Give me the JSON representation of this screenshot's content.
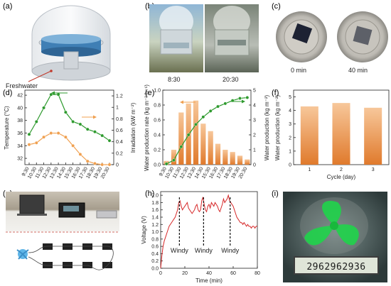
{
  "panel_labels": [
    "(a)",
    "(b)",
    "(c)",
    "(d)",
    "(e)",
    "(f)",
    "(g)",
    "(h)",
    "(i)"
  ],
  "panel_a": {
    "label": "Freshwater"
  },
  "panel_b": {
    "times": [
      "8:30",
      "20:30"
    ]
  },
  "panel_c": {
    "times": [
      "0 min",
      "40 min"
    ]
  },
  "panel_i": {
    "counter": "2962962936"
  },
  "colors": {
    "green": "#2e9a2e",
    "orange": "#f0a050",
    "bar_top": "#f7c79a",
    "bar_bottom": "#e07a2c",
    "black": "#000000"
  },
  "chart_data": [
    {
      "id": "d",
      "type": "line",
      "categories": [
        "9:30",
        "10:30",
        "11:30",
        "12:30",
        "13:30",
        "14:30",
        "15:30",
        "16:30",
        "17:30",
        "18:30",
        "19:30",
        "20:30"
      ],
      "ylabel": "Temperature (°C)",
      "y2label": "Irradiation (kW m⁻²)",
      "ylim": [
        31,
        42.8
      ],
      "yticks": [
        32,
        34,
        36,
        38,
        40,
        42
      ],
      "y2lim": [
        0,
        1.3
      ],
      "y2ticks": [
        0,
        0.2,
        0.4,
        0.6,
        0.8,
        1.0,
        1.2
      ],
      "series": [
        {
          "axis": "left",
          "color": "green",
          "values": [
            35.8,
            37.8,
            40.0,
            42.1,
            42.1,
            39.3,
            37.8,
            37.4,
            36.6,
            36.2,
            35.6,
            34.8
          ]
        },
        {
          "axis": "right",
          "color": "orange",
          "values": [
            0.35,
            0.38,
            0.48,
            0.55,
            0.55,
            0.48,
            0.33,
            0.18,
            0.06,
            0.02,
            0.0,
            0.0
          ]
        }
      ]
    },
    {
      "id": "e",
      "type": "bar",
      "categories": [
        "9:30",
        "10:30",
        "11:30",
        "12:30",
        "13:30",
        "14:30",
        "15:30",
        "16:30",
        "17:30",
        "18:30",
        "19:30",
        "20:30"
      ],
      "ylabel": "Water production rate (kg m⁻² h⁻¹)",
      "y2label": "Water production (kg m⁻²)",
      "ylim": [
        0,
        1.0
      ],
      "yticks": [
        0.0,
        0.2,
        0.4,
        0.6,
        0.8,
        1.0
      ],
      "y2lim": [
        0,
        5
      ],
      "y2ticks": [
        0,
        1,
        2,
        3,
        4,
        5
      ],
      "values": [
        0.05,
        0.2,
        0.7,
        0.82,
        0.86,
        0.55,
        0.45,
        0.28,
        0.2,
        0.17,
        0.12,
        0.07
      ],
      "series": [
        {
          "axis": "right",
          "color": "green",
          "values": [
            0.05,
            0.3,
            1.2,
            2.0,
            2.7,
            3.2,
            3.6,
            3.9,
            4.1,
            4.3,
            4.45,
            4.5
          ]
        }
      ]
    },
    {
      "id": "f",
      "type": "bar",
      "categories": [
        "1",
        "2",
        "3"
      ],
      "xlabel": "Cycle (day)",
      "ylabel": "Water production (kg m⁻²)",
      "ylim": [
        0,
        5.5
      ],
      "yticks": [
        0,
        1,
        2,
        3,
        4,
        5
      ],
      "values": [
        4.3,
        4.55,
        4.2
      ]
    },
    {
      "id": "h",
      "type": "line",
      "xlabel": "Time (min)",
      "ylabel": "Voltage (V)",
      "xlim": [
        0,
        80
      ],
      "xticks": [
        0,
        20,
        40,
        60,
        80
      ],
      "ylim": [
        0,
        2.1
      ],
      "yticks": [
        0.0,
        0.2,
        0.4,
        0.6,
        0.8,
        1.0,
        1.2,
        1.4,
        1.6,
        1.8,
        2.0
      ],
      "annotations": [
        {
          "x": 15.5,
          "text": "Windy"
        },
        {
          "x": 35.5,
          "text": "Windy"
        },
        {
          "x": 57.5,
          "text": "Windy"
        }
      ],
      "series": [
        {
          "color": "red",
          "x": [
            0,
            1,
            2,
            3,
            4,
            5,
            6,
            7,
            8,
            9,
            10,
            11,
            12,
            13,
            14,
            15,
            16,
            17,
            18,
            19,
            20,
            21,
            22,
            23,
            24,
            25,
            26,
            27,
            28,
            29,
            30,
            31,
            32,
            33,
            34,
            35,
            36,
            37,
            38,
            39,
            40,
            41,
            42,
            43,
            44,
            45,
            46,
            47,
            48,
            49,
            50,
            51,
            52,
            53,
            54,
            55,
            56,
            57,
            58,
            59,
            60,
            61,
            62,
            63,
            64,
            65,
            66,
            67,
            68,
            69,
            70,
            71,
            72,
            73,
            74,
            75,
            76,
            77,
            78,
            79,
            80
          ],
          "values": [
            0.0,
            0.35,
            0.6,
            0.75,
            0.85,
            0.95,
            1.05,
            1.15,
            1.2,
            1.25,
            1.3,
            1.35,
            1.4,
            1.5,
            1.6,
            1.8,
            1.85,
            1.7,
            1.6,
            1.65,
            1.7,
            1.75,
            1.8,
            1.65,
            1.6,
            1.55,
            1.5,
            1.55,
            1.6,
            1.7,
            1.75,
            1.6,
            1.55,
            1.6,
            1.85,
            1.95,
            1.75,
            1.6,
            1.55,
            1.7,
            1.75,
            1.65,
            1.8,
            1.75,
            1.7,
            1.8,
            1.75,
            1.7,
            1.6,
            1.55,
            1.65,
            1.75,
            1.9,
            1.8,
            1.85,
            1.9,
            2.0,
            1.85,
            1.8,
            1.75,
            1.7,
            1.6,
            1.5,
            1.4,
            1.35,
            1.3,
            1.25,
            1.25,
            1.2,
            1.25,
            1.2,
            1.15,
            1.2,
            1.15,
            1.15,
            1.1,
            1.15,
            1.15,
            1.1,
            1.15,
            1.15
          ]
        }
      ]
    }
  ]
}
